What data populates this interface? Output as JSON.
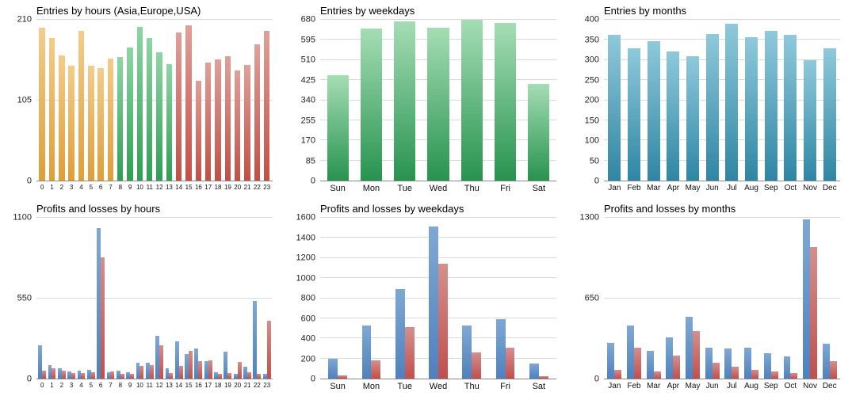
{
  "chart_data": [
    {
      "type": "bar",
      "title": "Entries by hours (Asia,Europe,USA)",
      "xlabel": "",
      "ylabel": "",
      "categories": [
        "0",
        "1",
        "2",
        "3",
        "4",
        "5",
        "6",
        "7",
        "8",
        "9",
        "10",
        "11",
        "12",
        "13",
        "14",
        "15",
        "16",
        "17",
        "18",
        "19",
        "20",
        "21",
        "22",
        "23"
      ],
      "values": [
        200,
        186,
        163,
        150,
        196,
        150,
        147,
        159,
        161,
        174,
        201,
        186,
        168,
        152,
        193,
        203,
        130,
        154,
        158,
        162,
        144,
        151,
        178,
        196
      ],
      "ylim": [
        0,
        210
      ],
      "y_ticks": [
        0,
        105,
        210
      ],
      "grid": true,
      "legend": "none",
      "color_groups": [
        {
          "name": "Asia",
          "range": [
            0,
            7
          ],
          "light": "#F2CD8B",
          "base": "#DF9E37"
        },
        {
          "name": "Europe",
          "range": [
            8,
            13
          ],
          "light": "#8ED6A4",
          "base": "#2F9E54"
        },
        {
          "name": "USA",
          "range": [
            14,
            23
          ],
          "light": "#DFA09A",
          "base": "#C05046"
        }
      ],
      "bar_pct": 60,
      "x_font": 8
    },
    {
      "type": "bar",
      "title": "Entries by weekdays",
      "xlabel": "",
      "ylabel": "",
      "categories": [
        "Sun",
        "Mon",
        "Tue",
        "Wed",
        "Thu",
        "Fri",
        "Sat"
      ],
      "values": [
        447,
        642,
        674,
        645,
        680,
        666,
        410
      ],
      "ylim": [
        0,
        680
      ],
      "y_ticks": [
        0,
        85,
        170,
        255,
        340,
        425,
        510,
        595,
        680
      ],
      "grid": true,
      "legend": "none",
      "color": {
        "light": "#A5DDB5",
        "base": "#27934F"
      },
      "bar_pct": 64,
      "x_font": 11
    },
    {
      "type": "bar",
      "title": "Entries by months",
      "xlabel": "",
      "ylabel": "",
      "categories": [
        "Jan",
        "Feb",
        "Mar",
        "Apr",
        "May",
        "Jun",
        "Jul",
        "Aug",
        "Sep",
        "Oct",
        "Nov",
        "Dec"
      ],
      "values": [
        363,
        330,
        347,
        322,
        310,
        365,
        390,
        357,
        372,
        362,
        300,
        330
      ],
      "ylim": [
        0,
        400
      ],
      "y_ticks": [
        0,
        50,
        100,
        150,
        200,
        250,
        300,
        350,
        400
      ],
      "grid": true,
      "legend": "none",
      "color": {
        "light": "#8FC9DB",
        "base": "#2E86A4"
      },
      "bar_pct": 64,
      "x_font": 10
    },
    {
      "type": "bar",
      "title": "Profits and losses by hours",
      "xlabel": "",
      "ylabel": "",
      "categories": [
        "0",
        "1",
        "2",
        "3",
        "4",
        "5",
        "6",
        "7",
        "8",
        "9",
        "10",
        "11",
        "12",
        "13",
        "14",
        "15",
        "16",
        "17",
        "18",
        "19",
        "20",
        "21",
        "22",
        "23"
      ],
      "series": [
        {
          "name": "profits",
          "light": "#7FA8D4",
          "base": "#4F81BD",
          "values": [
            225,
            90,
            70,
            50,
            55,
            60,
            1030,
            45,
            55,
            45,
            110,
            110,
            290,
            70,
            255,
            170,
            205,
            120,
            45,
            185,
            35,
            80,
            530,
            30
          ]
        },
        {
          "name": "losses",
          "light": "#D48F8D",
          "base": "#C0504D",
          "values": [
            55,
            70,
            55,
            40,
            40,
            45,
            830,
            50,
            35,
            30,
            85,
            90,
            225,
            40,
            85,
            190,
            120,
            125,
            35,
            40,
            115,
            45,
            30,
            395
          ]
        }
      ],
      "ylim": [
        0,
        1100
      ],
      "y_ticks": [
        0,
        550,
        1100
      ],
      "grid": true,
      "legend": "none",
      "bar_pct": 40,
      "x_font": 8
    },
    {
      "type": "bar",
      "title": "Profits and losses by weekdays",
      "xlabel": "",
      "ylabel": "",
      "categories": [
        "Sun",
        "Mon",
        "Tue",
        "Wed",
        "Thu",
        "Fri",
        "Sat"
      ],
      "series": [
        {
          "name": "profits",
          "light": "#7FA8D4",
          "base": "#4F81BD",
          "values": [
            200,
            530,
            890,
            1510,
            525,
            595,
            150
          ]
        },
        {
          "name": "losses",
          "light": "#D48F8D",
          "base": "#C0504D",
          "values": [
            30,
            185,
            510,
            1140,
            260,
            310,
            25
          ]
        }
      ],
      "ylim": [
        0,
        1600
      ],
      "y_ticks": [
        0,
        200,
        400,
        600,
        800,
        1000,
        1200,
        1400,
        1600
      ],
      "grid": true,
      "legend": "none",
      "bar_pct": 28,
      "x_font": 11
    },
    {
      "type": "bar",
      "title": "Profits and losses by months",
      "xlabel": "",
      "ylabel": "",
      "categories": [
        "Jan",
        "Feb",
        "Mar",
        "Apr",
        "May",
        "Jun",
        "Jul",
        "Aug",
        "Sep",
        "Oct",
        "Nov",
        "Dec"
      ],
      "series": [
        {
          "name": "profits",
          "light": "#7FA8D4",
          "base": "#4F81BD",
          "values": [
            290,
            430,
            225,
            330,
            500,
            250,
            245,
            250,
            205,
            180,
            1290,
            280
          ]
        },
        {
          "name": "losses",
          "light": "#D48F8D",
          "base": "#C0504D",
          "values": [
            70,
            250,
            60,
            185,
            385,
            130,
            95,
            70,
            60,
            45,
            1060,
            140
          ]
        }
      ],
      "ylim": [
        0,
        1300
      ],
      "y_ticks": [
        0,
        650,
        1300
      ],
      "grid": true,
      "legend": "none",
      "bar_pct": 36,
      "x_font": 10
    }
  ]
}
